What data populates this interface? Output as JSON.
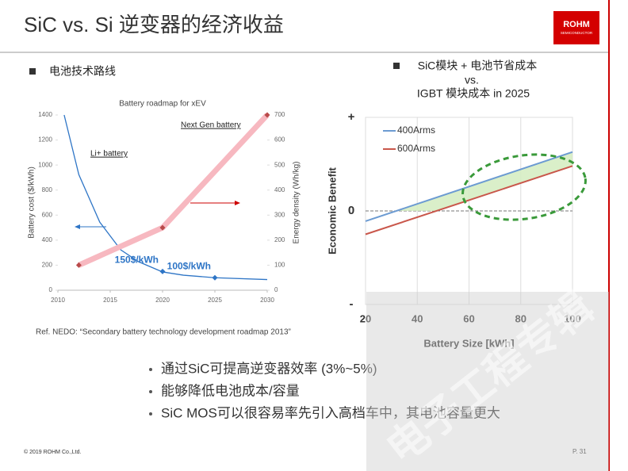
{
  "header": {
    "title": "SiC vs. Si 逆变器的经济收益",
    "logo": "ROHM",
    "logo_sub": "SEMICONDUCTOR"
  },
  "left_heading": "电池技术路线",
  "right_heading": [
    "SiC模块 + 电池节省成本",
    "vs.",
    "IGBT 模块成本 in 2025"
  ],
  "reference": "Ref. NEDO: “Secondary battery technology development roadmap 2013”",
  "bullets": [
    "通过SiC可提高逆变器效率 (3%~5%)",
    "能够降低电池成本/容量",
    "SiC MOS可以很容易率先引入高档车中，其电池容量更大"
  ],
  "footer": {
    "copyright": "© 2019 ROHM Co.,Ltd.",
    "page": "P. 31"
  },
  "watermark": "电子工程专辑",
  "chart_data": [
    {
      "type": "line",
      "title": "Battery roadmap for xEV",
      "ylabel": "Battery cost ($/kWh)",
      "y2label": "Energy density (Wh/kg)",
      "xlim": [
        2010,
        2030
      ],
      "xticks": [
        2010,
        2015,
        2020,
        2025,
        2030
      ],
      "ylim": [
        0,
        1400
      ],
      "yticks": [
        0,
        200,
        400,
        600,
        800,
        1000,
        1200,
        1400
      ],
      "y2lim": [
        0,
        700
      ],
      "y2ticks": [
        0,
        100,
        200,
        300,
        400,
        500,
        600,
        700
      ],
      "series": [
        {
          "name": "Li+ battery",
          "color": "#2e75c6",
          "x": [
            2010.6,
            2012,
            2014,
            2016,
            2017.7,
            2020,
            2022,
            2025,
            2030
          ],
          "values": [
            1400,
            924,
            544,
            323,
            228,
            146,
            120,
            100,
            85
          ]
        },
        {
          "name": "Next Gen battery",
          "color": "#f7b8c0",
          "axis": "y2",
          "x": [
            2012,
            2020,
            2030
          ],
          "values": [
            100,
            250,
            700
          ]
        }
      ],
      "points": [
        {
          "x": 2020,
          "value": 150,
          "label": "150$/kWh"
        },
        {
          "x": 2025,
          "value": 100,
          "label": "100$/kWh"
        }
      ]
    },
    {
      "type": "line",
      "xlabel": "Battery Size [kWh]",
      "ylabel": "Economic Benefit",
      "xlim": [
        20,
        100
      ],
      "xticks": [
        20,
        40,
        60,
        80,
        100
      ],
      "ylim": [
        -1,
        1
      ],
      "yticks": [
        {
          "value": 1,
          "label": "+"
        },
        {
          "value": 0,
          "label": "0"
        },
        {
          "value": -1,
          "label": "-"
        }
      ],
      "grid": true,
      "legend": "upper left",
      "series": [
        {
          "name": "400Arms",
          "color": "#6c9bd2",
          "x": [
            20,
            100
          ],
          "values": [
            -0.11,
            0.63
          ]
        },
        {
          "name": "600Arms",
          "color": "#c9574b",
          "x": [
            20,
            100
          ],
          "values": [
            -0.25,
            0.48
          ]
        }
      ]
    }
  ]
}
